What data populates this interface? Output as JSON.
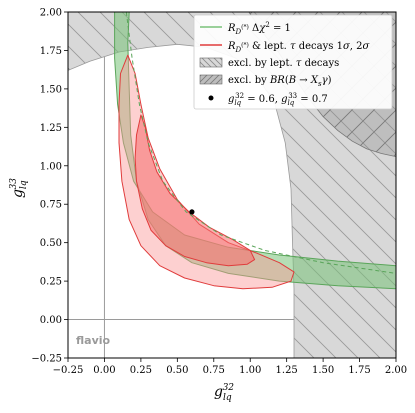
{
  "chart_data": {
    "type": "contour",
    "xlabel": "g_lq^32",
    "ylabel": "g_lq^33",
    "xlim": [
      -0.25,
      2.0
    ],
    "ylim": [
      -0.25,
      2.0
    ],
    "xticks": [
      "-0.25",
      "0.00",
      "0.25",
      "0.50",
      "0.75",
      "1.00",
      "1.25",
      "1.50",
      "1.75",
      "2.00"
    ],
    "yticks": [
      "-0.25",
      "0.00",
      "0.25",
      "0.50",
      "0.75",
      "1.00",
      "1.25",
      "1.50",
      "1.75",
      "2.00"
    ],
    "watermark": "flavio",
    "legend_position": "top-right",
    "legend": [
      {
        "label": "R_D(*) Δχ² = 1",
        "style": "green-line"
      },
      {
        "label": "R_D(*) & lept. τ decays 1σ, 2σ",
        "style": "red-line"
      },
      {
        "label": "excl. by lept. τ decays",
        "style": "hatch-back"
      },
      {
        "label": "excl. by BR(B → X_s γ)",
        "style": "hatch-fwd"
      },
      {
        "label": "g_lq^32 = 0.6, g_lq^33 = 0.7",
        "style": "black-dot"
      }
    ],
    "benchmark_point": {
      "x": 0.6,
      "y": 0.7
    },
    "series": [
      {
        "kind": "excluded-tau",
        "outline": [
          [
            -0.25,
            1.62
          ],
          [
            -0.1,
            1.68
          ],
          [
            0.1,
            1.74
          ],
          [
            0.3,
            1.77
          ],
          [
            0.5,
            1.79
          ],
          [
            0.7,
            1.77
          ],
          [
            0.9,
            1.7
          ],
          [
            1.05,
            1.58
          ],
          [
            1.17,
            1.4
          ],
          [
            1.24,
            1.15
          ],
          [
            1.28,
            0.85
          ],
          [
            1.29,
            0.5
          ],
          [
            1.3,
            0.2
          ],
          [
            1.3,
            -0.25
          ],
          [
            2.0,
            -0.25
          ],
          [
            2.0,
            2.0
          ],
          [
            -0.25,
            2.0
          ]
        ]
      },
      {
        "kind": "excluded-bsg",
        "outline": [
          [
            0.99,
            2.0
          ],
          [
            1.1,
            1.85
          ],
          [
            1.2,
            1.73
          ],
          [
            1.3,
            1.58
          ],
          [
            1.4,
            1.44
          ],
          [
            1.5,
            1.32
          ],
          [
            1.6,
            1.23
          ],
          [
            1.7,
            1.16
          ],
          [
            1.8,
            1.11
          ],
          [
            1.9,
            1.08
          ],
          [
            2.0,
            1.06
          ],
          [
            2.0,
            2.0
          ]
        ]
      },
      {
        "kind": "green-1sigma",
        "outline": [
          [
            0.07,
            2.0
          ],
          [
            0.07,
            1.7
          ],
          [
            0.09,
            1.4
          ],
          [
            0.13,
            1.15
          ],
          [
            0.2,
            0.9
          ],
          [
            0.33,
            0.7
          ],
          [
            0.55,
            0.55
          ],
          [
            0.85,
            0.47
          ],
          [
            1.2,
            0.42
          ],
          [
            1.6,
            0.38
          ],
          [
            2.0,
            0.35
          ],
          [
            2.0,
            0.2
          ],
          [
            1.6,
            0.22
          ],
          [
            1.2,
            0.25
          ],
          [
            0.85,
            0.3
          ],
          [
            0.6,
            0.37
          ],
          [
            0.42,
            0.48
          ],
          [
            0.3,
            0.65
          ],
          [
            0.22,
            0.9
          ],
          [
            0.18,
            1.2
          ],
          [
            0.17,
            1.5
          ],
          [
            0.16,
            1.8
          ],
          [
            0.17,
            2.0
          ]
        ]
      },
      {
        "kind": "red-2sigma",
        "outline": [
          [
            0.16,
            1.72
          ],
          [
            0.21,
            1.6
          ],
          [
            0.25,
            1.4
          ],
          [
            0.3,
            1.18
          ],
          [
            0.38,
            0.98
          ],
          [
            0.5,
            0.78
          ],
          [
            0.65,
            0.62
          ],
          [
            0.85,
            0.5
          ],
          [
            1.05,
            0.43
          ],
          [
            1.2,
            0.37
          ],
          [
            1.3,
            0.31
          ],
          [
            1.28,
            0.25
          ],
          [
            1.15,
            0.21
          ],
          [
            0.95,
            0.2
          ],
          [
            0.75,
            0.22
          ],
          [
            0.55,
            0.27
          ],
          [
            0.38,
            0.35
          ],
          [
            0.25,
            0.48
          ],
          [
            0.17,
            0.65
          ],
          [
            0.12,
            0.9
          ],
          [
            0.1,
            1.15
          ],
          [
            0.1,
            1.4
          ],
          [
            0.11,
            1.6
          ]
        ]
      },
      {
        "kind": "red-1sigma",
        "outline": [
          [
            0.25,
            1.33
          ],
          [
            0.28,
            1.25
          ],
          [
            0.31,
            1.1
          ],
          [
            0.36,
            0.96
          ],
          [
            0.45,
            0.82
          ],
          [
            0.58,
            0.7
          ],
          [
            0.72,
            0.6
          ],
          [
            0.88,
            0.52
          ],
          [
            1.0,
            0.45
          ],
          [
            1.03,
            0.39
          ],
          [
            0.98,
            0.36
          ],
          [
            0.85,
            0.35
          ],
          [
            0.7,
            0.37
          ],
          [
            0.55,
            0.41
          ],
          [
            0.42,
            0.48
          ],
          [
            0.32,
            0.58
          ],
          [
            0.26,
            0.72
          ],
          [
            0.22,
            0.9
          ],
          [
            0.21,
            1.05
          ],
          [
            0.22,
            1.2
          ]
        ]
      }
    ],
    "dashed_line": [
      [
        0.15,
        2.0
      ],
      [
        0.19,
        1.7
      ],
      [
        0.24,
        1.4
      ],
      [
        0.3,
        1.15
      ],
      [
        0.4,
        0.9
      ],
      [
        0.56,
        0.7
      ],
      [
        0.8,
        0.55
      ],
      [
        1.1,
        0.45
      ],
      [
        1.5,
        0.37
      ],
      [
        2.0,
        0.3
      ]
    ]
  }
}
